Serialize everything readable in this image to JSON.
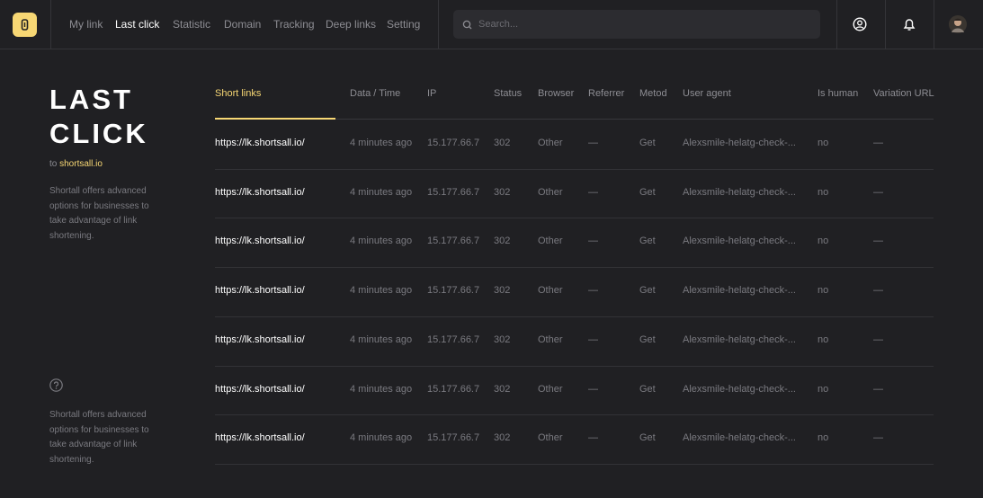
{
  "nav": {
    "items": [
      "My link",
      "Last click",
      "Statistic",
      "Domain",
      "Tracking",
      "Deep links",
      "Setting"
    ],
    "search_placeholder": "Search..."
  },
  "sidebar": {
    "title": "LAST CLICK",
    "to": "to",
    "domain": "shortsall.io",
    "description": "Shortall offers advanced options for businesses to take advantage of link shortening.",
    "help_text": "Shortall offers advanced options for businesses to take advantage of link shortening."
  },
  "table": {
    "columns": [
      "Short links",
      "Data / Time",
      "IP",
      "Status",
      "Browser",
      "Referrer",
      "Metod",
      "User  agent",
      "Is human",
      "Variation URL"
    ],
    "rows": [
      [
        "https://lk.shortsall.io/",
        "4 minutes ago",
        "15.177.66.7",
        "302",
        "Other",
        "—",
        "Get",
        "Alexsmile-helatg-check-...",
        "no",
        "—"
      ],
      [
        "https://lk.shortsall.io/",
        "4 minutes ago",
        "15.177.66.7",
        "302",
        "Other",
        "—",
        "Get",
        "Alexsmile-helatg-check-...",
        "no",
        "—"
      ],
      [
        "https://lk.shortsall.io/",
        "4 minutes ago",
        "15.177.66.7",
        "302",
        "Other",
        "—",
        "Get",
        "Alexsmile-helatg-check-...",
        "no",
        "—"
      ],
      [
        "https://lk.shortsall.io/",
        "4 minutes ago",
        "15.177.66.7",
        "302",
        "Other",
        "—",
        "Get",
        "Alexsmile-helatg-check-...",
        "no",
        "—"
      ],
      [
        "https://lk.shortsall.io/",
        "4 minutes ago",
        "15.177.66.7",
        "302",
        "Other",
        "—",
        "Get",
        "Alexsmile-helatg-check-...",
        "no",
        "—"
      ],
      [
        "https://lk.shortsall.io/",
        "4 minutes ago",
        "15.177.66.7",
        "302",
        "Other",
        "—",
        "Get",
        "Alexsmile-helatg-check-...",
        "no",
        "—"
      ],
      [
        "https://lk.shortsall.io/",
        "4 minutes ago",
        "15.177.66.7",
        "302",
        "Other",
        "—",
        "Get",
        "Alexsmile-helatg-check-...",
        "no",
        "—"
      ]
    ]
  }
}
